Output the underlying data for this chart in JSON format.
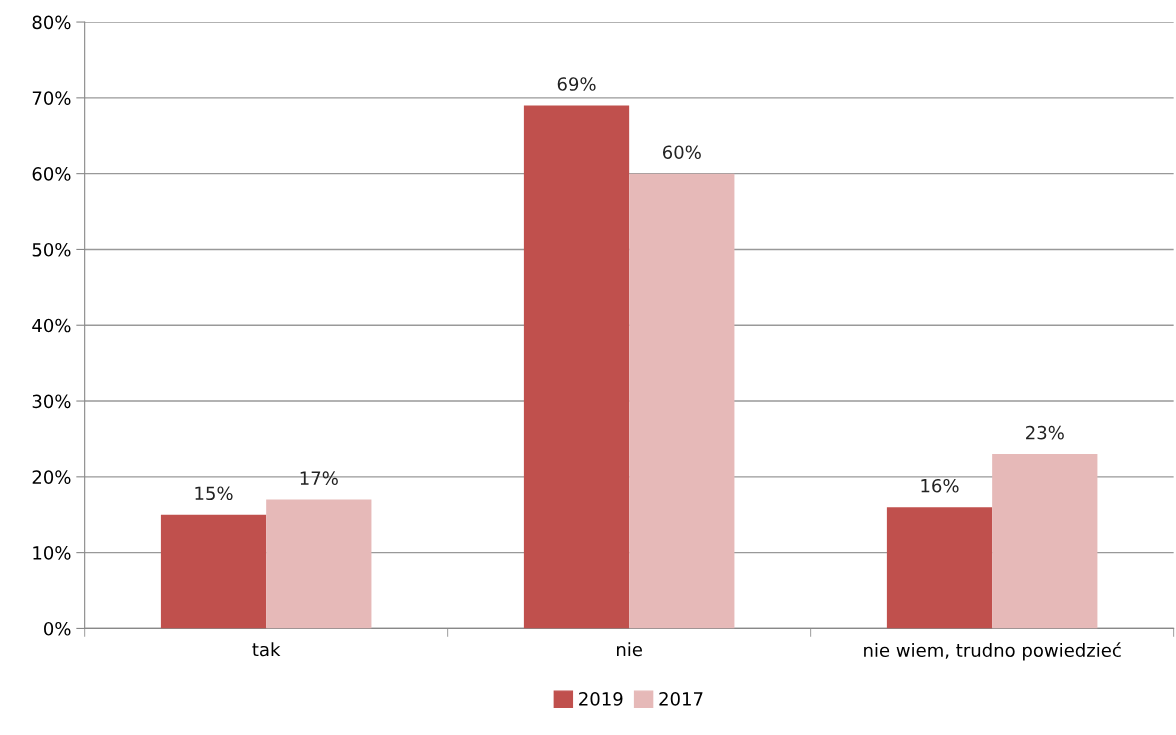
{
  "chart_data": {
    "type": "bar",
    "categories": [
      "tak",
      "nie",
      "nie wiem, trudno powiedzieć"
    ],
    "series": [
      {
        "name": "2019",
        "color": "#c0504d",
        "values": [
          15,
          69,
          16
        ],
        "value_labels": [
          "15%",
          "69%",
          "16%"
        ]
      },
      {
        "name": "2017",
        "color": "#e6b9b8",
        "values": [
          17,
          60,
          23
        ],
        "value_labels": [
          "17%",
          "60%",
          "23%"
        ]
      }
    ],
    "ylim": [
      0,
      80
    ],
    "yticks": [
      {
        "value": 0,
        "label": "0%"
      },
      {
        "value": 10,
        "label": "10%"
      },
      {
        "value": 20,
        "label": "20%"
      },
      {
        "value": 30,
        "label": "30%"
      },
      {
        "value": 40,
        "label": "40%"
      },
      {
        "value": 50,
        "label": "50%"
      },
      {
        "value": 60,
        "label": "60%"
      },
      {
        "value": 70,
        "label": "70%"
      },
      {
        "value": 80,
        "label": "80%"
      }
    ],
    "grid": "y",
    "legend": "bottom"
  }
}
